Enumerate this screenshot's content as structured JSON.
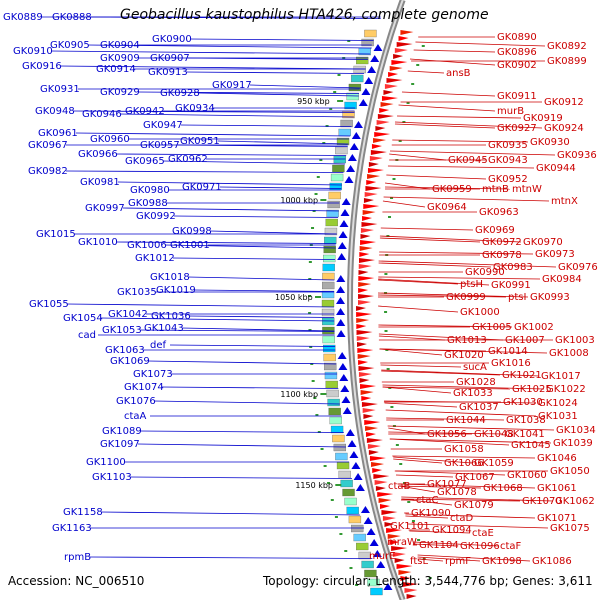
{
  "title": "Geobacillus kaustophilus HTA426, complete genome",
  "footer": {
    "accession": "Accession: NC_006510",
    "summary": "Topology: circular; Length: 3,544,776 bp; Genes: 3,611"
  },
  "kbp_markers": [
    {
      "label": "950 kbp"
    },
    {
      "label": "1000 kbp"
    },
    {
      "label": "1050 kbp"
    },
    {
      "label": "1100 kbp"
    },
    {
      "label": "1150 kbp"
    }
  ],
  "left_labels": [
    "GK0889",
    "GK0888",
    "GK0905",
    "GK0904",
    "GK0900",
    "GK0910",
    "GK0909",
    "GK0907",
    "GK0916",
    "GK0914",
    "GK0913",
    "GK0917",
    "GK0931",
    "GK0929",
    "GK0928",
    "GK0934",
    "GK0948",
    "GK0946",
    "GK0942",
    "GK0947",
    "GK0961",
    "GK0960",
    "GK0957",
    "GK0951",
    "GK0967",
    "GK0966",
    "GK0965",
    "GK0962",
    "GK0982",
    "GK0981",
    "GK0980",
    "GK0971",
    "GK0997",
    "GK0988",
    "GK0992",
    "GK0998",
    "GK1015",
    "GK1010",
    "GK1006",
    "GK1001",
    "GK1012",
    "GK1018",
    "GK1035",
    "GK1019",
    "GK1055",
    "GK1042",
    "GK1036",
    "GK1054",
    "cad",
    "GK1053",
    "GK1043",
    "GK1063",
    "def",
    "GK1069",
    "GK1073",
    "GK1074",
    "GK1076",
    "ctaA",
    "GK1089",
    "GK1097",
    "GK1100",
    "GK1103",
    "GK1158",
    "GK1163",
    "rpmB"
  ],
  "right_labels": [
    "GK0890",
    "GK0896",
    "GK0892",
    "GK0902",
    "GK0899",
    "ansB",
    "GK0911",
    "murB",
    "GK0912",
    "GK0919",
    "GK0927",
    "GK0924",
    "GK0935",
    "GK0930",
    "GK0936",
    "GK0945",
    "GK0943",
    "GK0944",
    "GK0952",
    "GK0959",
    "mtnB",
    "mtnW",
    "mtnX",
    "GK0964",
    "GK0963",
    "GK0969",
    "GK0972",
    "GK0970",
    "GK0978",
    "GK0973",
    "GK0983",
    "GK0976",
    "GK0990",
    "GK0984",
    "ptsH",
    "GK0991",
    "GK0999",
    "ptsI",
    "GK0993",
    "GK1000",
    "GK1005",
    "GK1002",
    "GK1013",
    "GK1007",
    "GK1003",
    "GK1014",
    "GK1008",
    "GK1020",
    "GK1016",
    "sucA",
    "GK1021",
    "GK1017",
    "GK1028",
    "GK1025",
    "GK1022",
    "GK1033",
    "GK1030",
    "GK1024",
    "GK1037",
    "GK1031",
    "GK1044",
    "GK1038",
    "GK1034",
    "GK1056",
    "GK1048",
    "GK1041",
    "GK1039",
    "GK1045",
    "GK1058",
    "GK1046",
    "GK1066",
    "GK1059",
    "GK1050",
    "GK1067",
    "GK1060",
    "ctaB",
    "GK1077",
    "GK1068",
    "GK1061",
    "GK1078",
    "ctaC",
    "GK1070",
    "GK1062",
    "GK1079",
    "GK1090",
    "ctaD",
    "GK1071",
    "GK1101",
    "GK1094",
    "ctaE",
    "GK1075",
    "mraW",
    "GK1104",
    "GK1096",
    "ctaF",
    "murE",
    "ftsL",
    "rpmF",
    "GK1098",
    "GK1086"
  ],
  "colors": {
    "left_label": "#0000cc",
    "right_label": "#cc0000",
    "backbone": "#888888",
    "forward_feature": "#0000dd",
    "reverse_feature": "#dd0000"
  }
}
